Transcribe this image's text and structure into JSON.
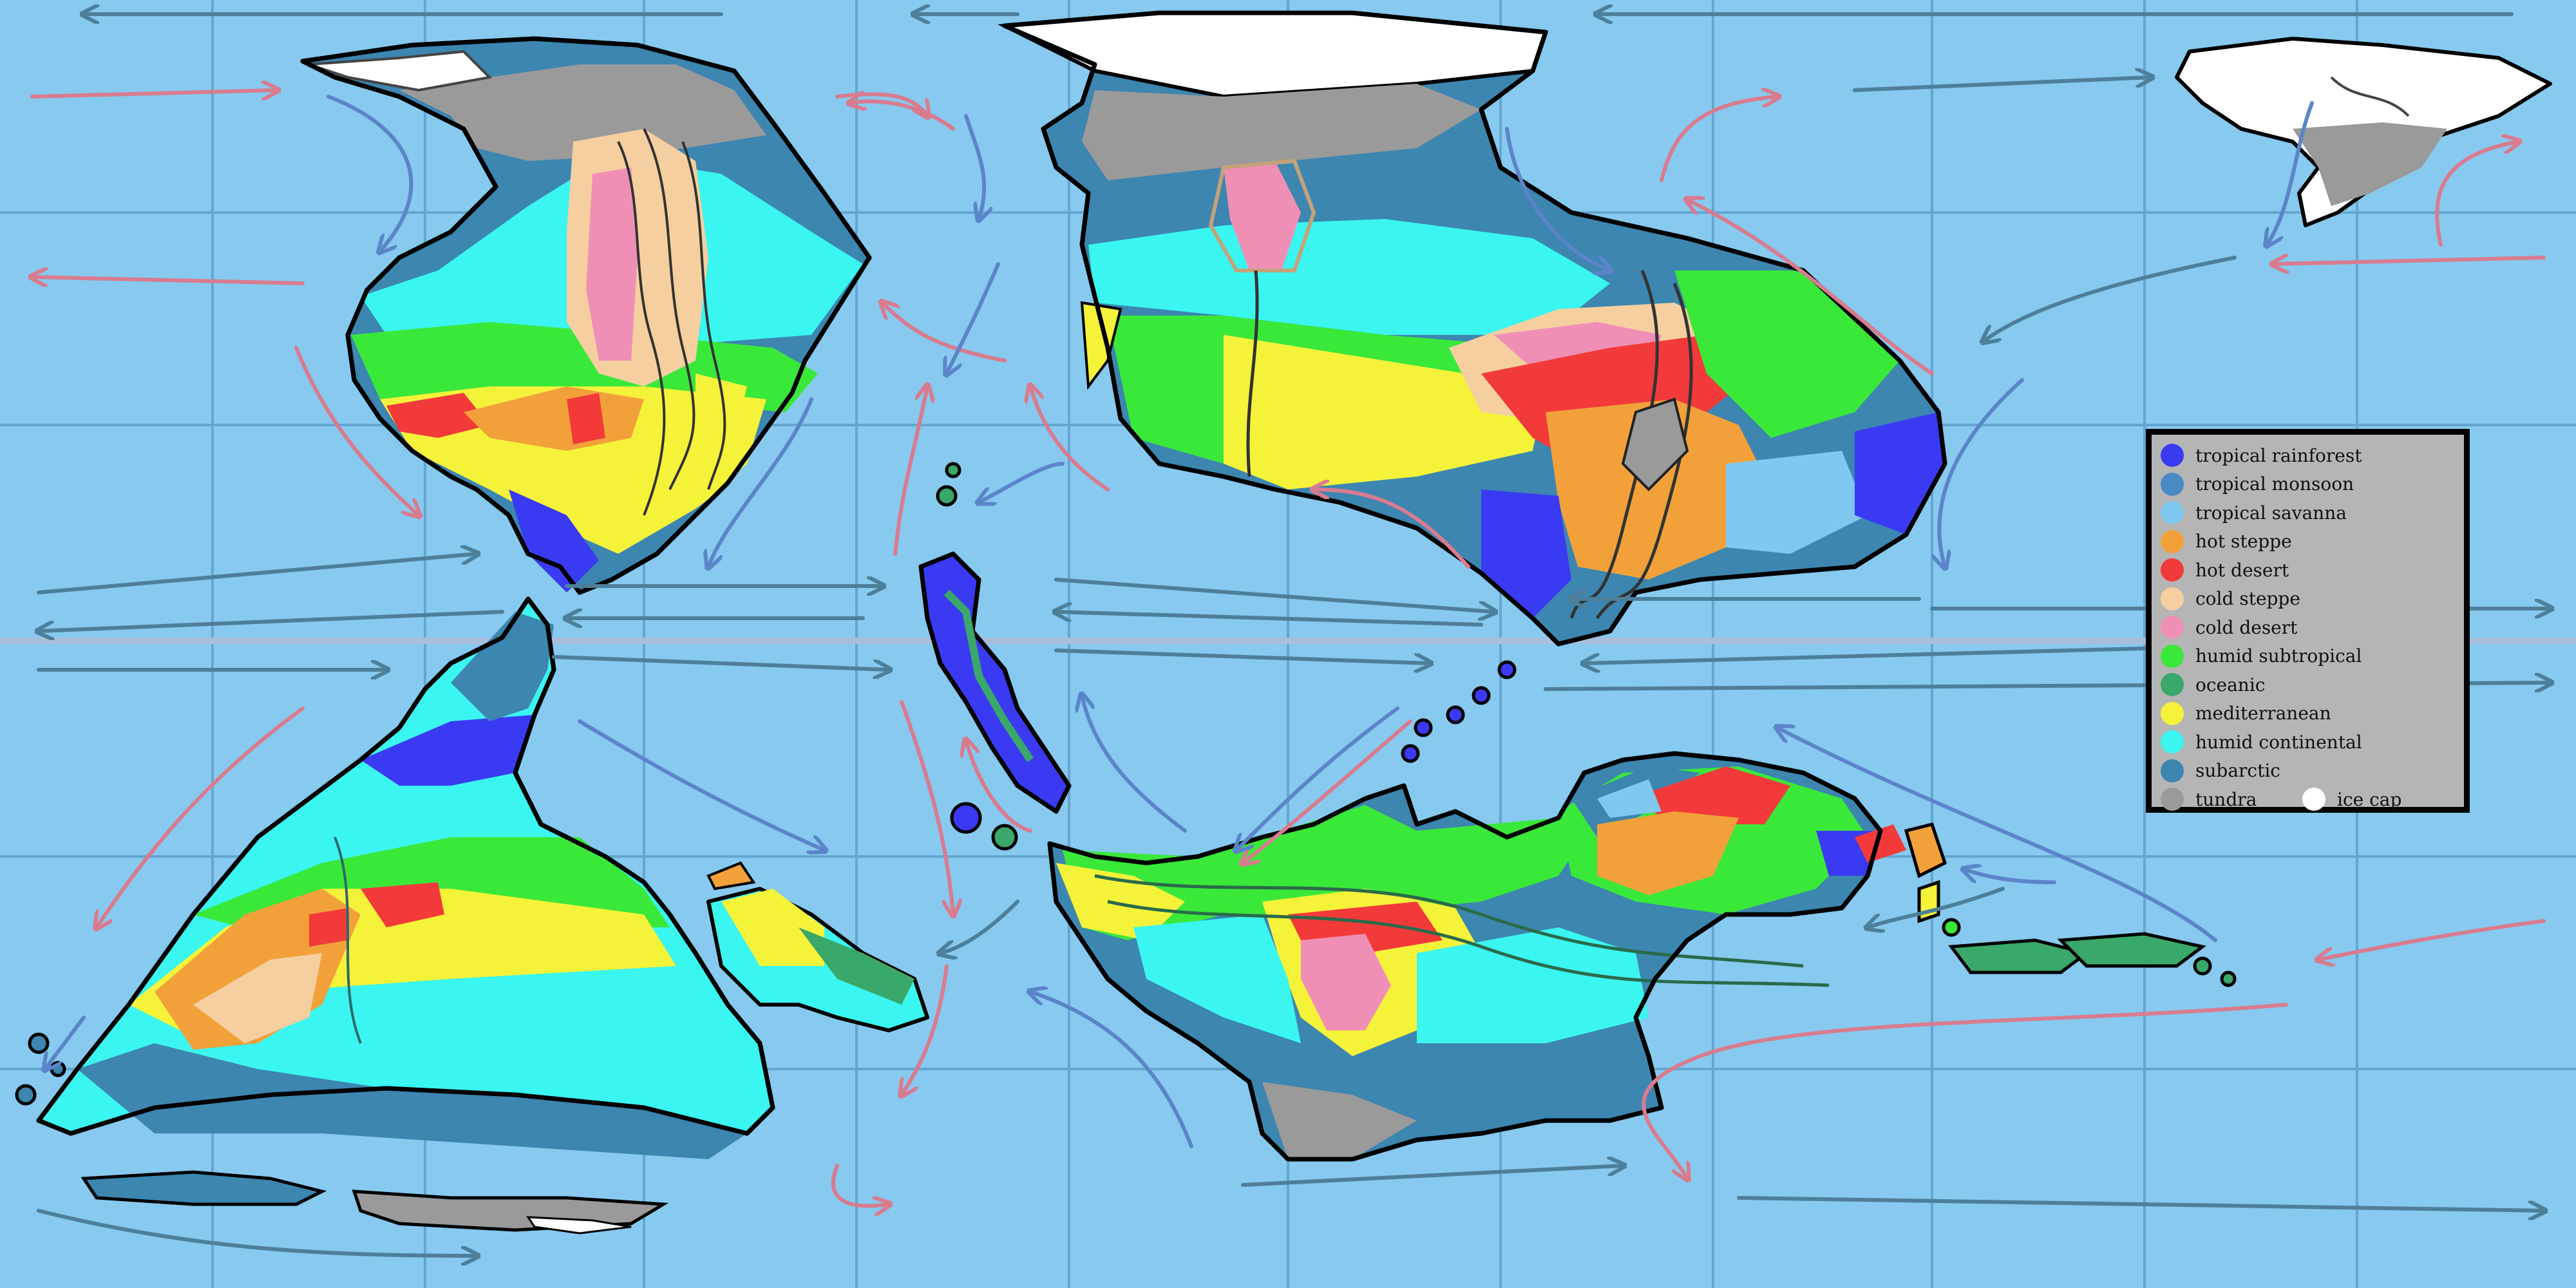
{
  "colors": {
    "ocean": "#87c9ef",
    "grid": "#5a9bc7",
    "equator": "#a9bedb",
    "warm_current": "#d97b8e",
    "cold_current": "#5b84c9",
    "neutral_current": "#4d7f9a",
    "coast": "#000000"
  },
  "legend": {
    "items": [
      {
        "key": "tropical_rainforest",
        "label": "tropical rainforest",
        "color": "#3a3af2",
        "icon": "swatch-circle"
      },
      {
        "key": "tropical_monsoon",
        "label": "tropical monsoon",
        "color": "#4a8ac4",
        "icon": "swatch-circle"
      },
      {
        "key": "tropical_savanna",
        "label": "tropical savanna",
        "color": "#7fc8f0",
        "icon": "swatch-circle"
      },
      {
        "key": "hot_steppe",
        "label": "hot steppe",
        "color": "#f2a13a",
        "icon": "swatch-circle"
      },
      {
        "key": "hot_desert",
        "label": "hot desert",
        "color": "#f23a3a",
        "icon": "swatch-circle"
      },
      {
        "key": "cold_steppe",
        "label": "cold steppe",
        "color": "#f5cfa0",
        "icon": "swatch-circle"
      },
      {
        "key": "cold_desert",
        "label": "cold desert",
        "color": "#ef8fb6",
        "icon": "swatch-circle"
      },
      {
        "key": "humid_subtropical",
        "label": "humid subtropical",
        "color": "#3ae83a",
        "icon": "swatch-circle"
      },
      {
        "key": "oceanic",
        "label": "oceanic",
        "color": "#3aa86a",
        "icon": "swatch-circle"
      },
      {
        "key": "mediterranean",
        "label": "mediterranean",
        "color": "#f5f23a",
        "icon": "swatch-circle"
      },
      {
        "key": "humid_continental",
        "label": "humid continental",
        "color": "#3af5f0",
        "icon": "swatch-circle"
      },
      {
        "key": "subarctic",
        "label": "subarctic",
        "color": "#3c86b0",
        "icon": "swatch-circle"
      },
      {
        "key": "tundra",
        "label": "tundra",
        "color": "#9a9a9a",
        "icon": "swatch-circle"
      }
    ],
    "extra": {
      "key": "ice_cap",
      "label": "ice cap",
      "color": "#ffffff",
      "icon": "swatch-circle"
    }
  }
}
